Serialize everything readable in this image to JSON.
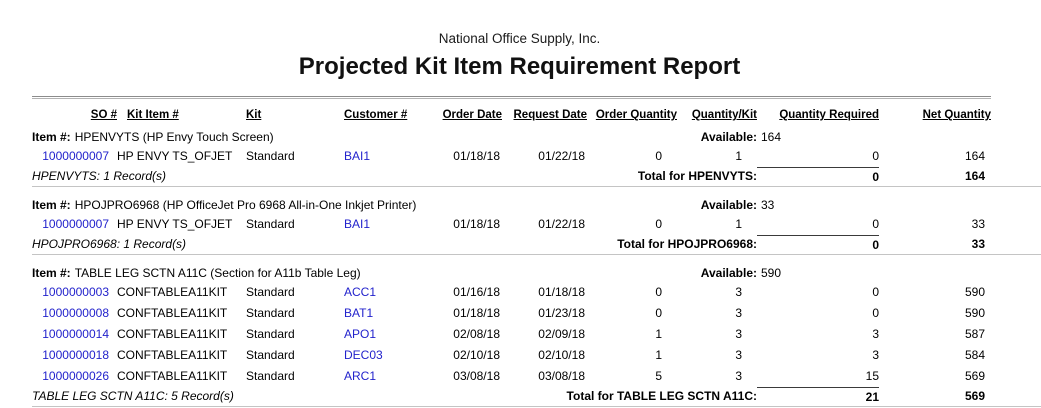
{
  "colors": {
    "link_blue": "#2222CC",
    "rule_gray": "#8c8c8c"
  },
  "report": {
    "company": "National Office Supply, Inc.",
    "title": "Projected Kit Item Requirement Report",
    "columns": {
      "so": "SO #",
      "kit_item": "Kit Item #",
      "kit": "Kit",
      "customer": "Customer #",
      "order_date": "Order Date",
      "request_date": "Request Date",
      "order_qty": "Order Quantity",
      "qty_per_kit": "Quantity/Kit",
      "qty_required": "Quantity Required",
      "net_qty": "Net Quantity"
    },
    "groups": [
      {
        "item_prefix": "Item #:",
        "item_title": "HPENVYTS (HP Envy Touch Screen)",
        "available_label": "Available:",
        "available_value": "164",
        "rows": [
          {
            "so": "1000000007",
            "kit_item": "HP ENVY TS_OFJET",
            "kit": "Standard",
            "customer": "BAI1",
            "order_date": "01/18/18",
            "request_date": "01/22/18",
            "order_qty": "0",
            "qty_per_kit": "1",
            "qty_required": "0",
            "net_qty": "164"
          }
        ],
        "records_summary": "HPENVYTS: 1 Record(s)",
        "total_label": "Total for HPENVYTS:",
        "total_required": "0",
        "total_net": "164"
      },
      {
        "item_prefix": "Item #:",
        "item_title": "HPOJPRO6968 (HP OfficeJet Pro 6968 All-in-One Inkjet Printer)",
        "available_label": "Available:",
        "available_value": "33",
        "rows": [
          {
            "so": "1000000007",
            "kit_item": "HP ENVY TS_OFJET",
            "kit": "Standard",
            "customer": "BAI1",
            "order_date": "01/18/18",
            "request_date": "01/22/18",
            "order_qty": "0",
            "qty_per_kit": "1",
            "qty_required": "0",
            "net_qty": "33"
          }
        ],
        "records_summary": "HPOJPRO6968: 1 Record(s)",
        "total_label": "Total for HPOJPRO6968:",
        "total_required": "0",
        "total_net": "33"
      },
      {
        "item_prefix": "Item #:",
        "item_title": "TABLE LEG SCTN A11C (Section for A11b Table Leg)",
        "available_label": "Available:",
        "available_value": "590",
        "rows": [
          {
            "so": "1000000003",
            "kit_item": "CONFTABLEA11KIT",
            "kit": "Standard",
            "customer": "ACC1",
            "order_date": "01/16/18",
            "request_date": "01/18/18",
            "order_qty": "0",
            "qty_per_kit": "3",
            "qty_required": "0",
            "net_qty": "590"
          },
          {
            "so": "1000000008",
            "kit_item": "CONFTABLEA11KIT",
            "kit": "Standard",
            "customer": "BAT1",
            "order_date": "01/18/18",
            "request_date": "01/23/18",
            "order_qty": "0",
            "qty_per_kit": "3",
            "qty_required": "0",
            "net_qty": "590"
          },
          {
            "so": "1000000014",
            "kit_item": "CONFTABLEA11KIT",
            "kit": "Standard",
            "customer": "APO1",
            "order_date": "02/08/18",
            "request_date": "02/09/18",
            "order_qty": "1",
            "qty_per_kit": "3",
            "qty_required": "3",
            "net_qty": "587"
          },
          {
            "so": "1000000018",
            "kit_item": "CONFTABLEA11KIT",
            "kit": "Standard",
            "customer": "DEC03",
            "order_date": "02/10/18",
            "request_date": "02/10/18",
            "order_qty": "1",
            "qty_per_kit": "3",
            "qty_required": "3",
            "net_qty": "584"
          },
          {
            "so": "1000000026",
            "kit_item": "CONFTABLEA11KIT",
            "kit": "Standard",
            "customer": "ARC1",
            "order_date": "03/08/18",
            "request_date": "03/08/18",
            "order_qty": "5",
            "qty_per_kit": "3",
            "qty_required": "15",
            "net_qty": "569"
          }
        ],
        "records_summary": "TABLE LEG SCTN A11C: 5 Record(s)",
        "total_label": "Total for TABLE LEG SCTN A11C:",
        "total_required": "21",
        "total_net": "569"
      }
    ]
  }
}
